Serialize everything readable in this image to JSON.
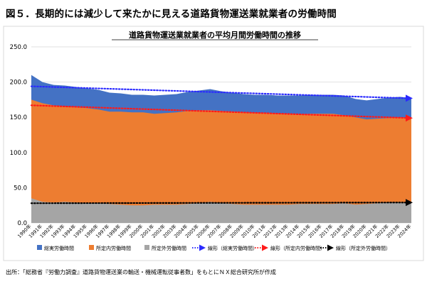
{
  "figure_title": "図５．長期的には減少して来たかに見える道路貨物運送業就業者の労働時間",
  "source_note": "出所：「総務省『労働力調査』道路貨物運送業の輸送・機械運転従事者数」をもとにＮＸ総合研究所が作成",
  "chart_data": {
    "type": "area",
    "title": "道路貨物運送業就業者の平均月間労働時間の推移",
    "xlabel": "",
    "ylabel": "",
    "ylim": [
      0,
      250
    ],
    "yticks": [
      "0.0",
      "50.0",
      "100.0",
      "150.0",
      "200.0",
      "250.0"
    ],
    "grid": true,
    "legend_position": "bottom",
    "categories": [
      "1990年",
      "1991年",
      "1992年",
      "1993年",
      "1994年",
      "1995年",
      "1996年",
      "1997年",
      "1998年",
      "1999年",
      "2000年",
      "2001年",
      "2002年",
      "2003年",
      "2004年",
      "2005年",
      "2006年",
      "2007年",
      "2008年",
      "2009年",
      "2010年",
      "2011年",
      "2012年",
      "2013年",
      "2014年",
      "2015年",
      "2016年",
      "2017年",
      "2018年",
      "2019年",
      "2020年",
      "2021年",
      "2022年",
      "2023年",
      "2024年"
    ],
    "series": [
      {
        "name": "総実労働時間",
        "color": "#4472C4",
        "values": [
          210,
          200,
          196,
          195,
          193,
          191,
          189,
          185,
          184,
          182,
          182,
          181,
          182,
          183,
          186,
          188,
          190,
          187,
          185,
          183,
          182,
          182,
          181,
          181,
          181,
          182,
          182,
          182,
          181,
          176,
          174,
          176,
          178,
          179,
          177
        ]
      },
      {
        "name": "所定内労働時間",
        "color": "#ED7D31",
        "values": [
          175,
          170,
          167,
          165,
          164,
          163,
          161,
          158,
          158,
          157,
          157,
          155,
          156,
          157,
          159,
          160,
          160,
          159,
          158,
          157,
          156,
          156,
          155,
          155,
          154,
          155,
          155,
          155,
          153,
          150,
          147,
          148,
          149,
          150,
          149
        ]
      },
      {
        "name": "所定外労働時間",
        "color": "#A5A5A5",
        "values": [
          35,
          30,
          29,
          30,
          29,
          28,
          28,
          27,
          26,
          25,
          25,
          26,
          26,
          26,
          27,
          28,
          30,
          28,
          27,
          26,
          26,
          26,
          26,
          26,
          27,
          27,
          27,
          27,
          28,
          26,
          27,
          28,
          29,
          29,
          28
        ]
      },
      {
        "name": "線形（総実労働時間）",
        "color": "#2B2BFF",
        "type": "trend",
        "start": 194,
        "end": 177
      },
      {
        "name": "線形（所定内労働時間）",
        "color": "#FF1A1A",
        "type": "trend",
        "start": 167,
        "end": 149
      },
      {
        "name": "線形（所定外労働時間）",
        "color": "#000000",
        "type": "trend",
        "start": 28,
        "end": 29
      }
    ]
  }
}
